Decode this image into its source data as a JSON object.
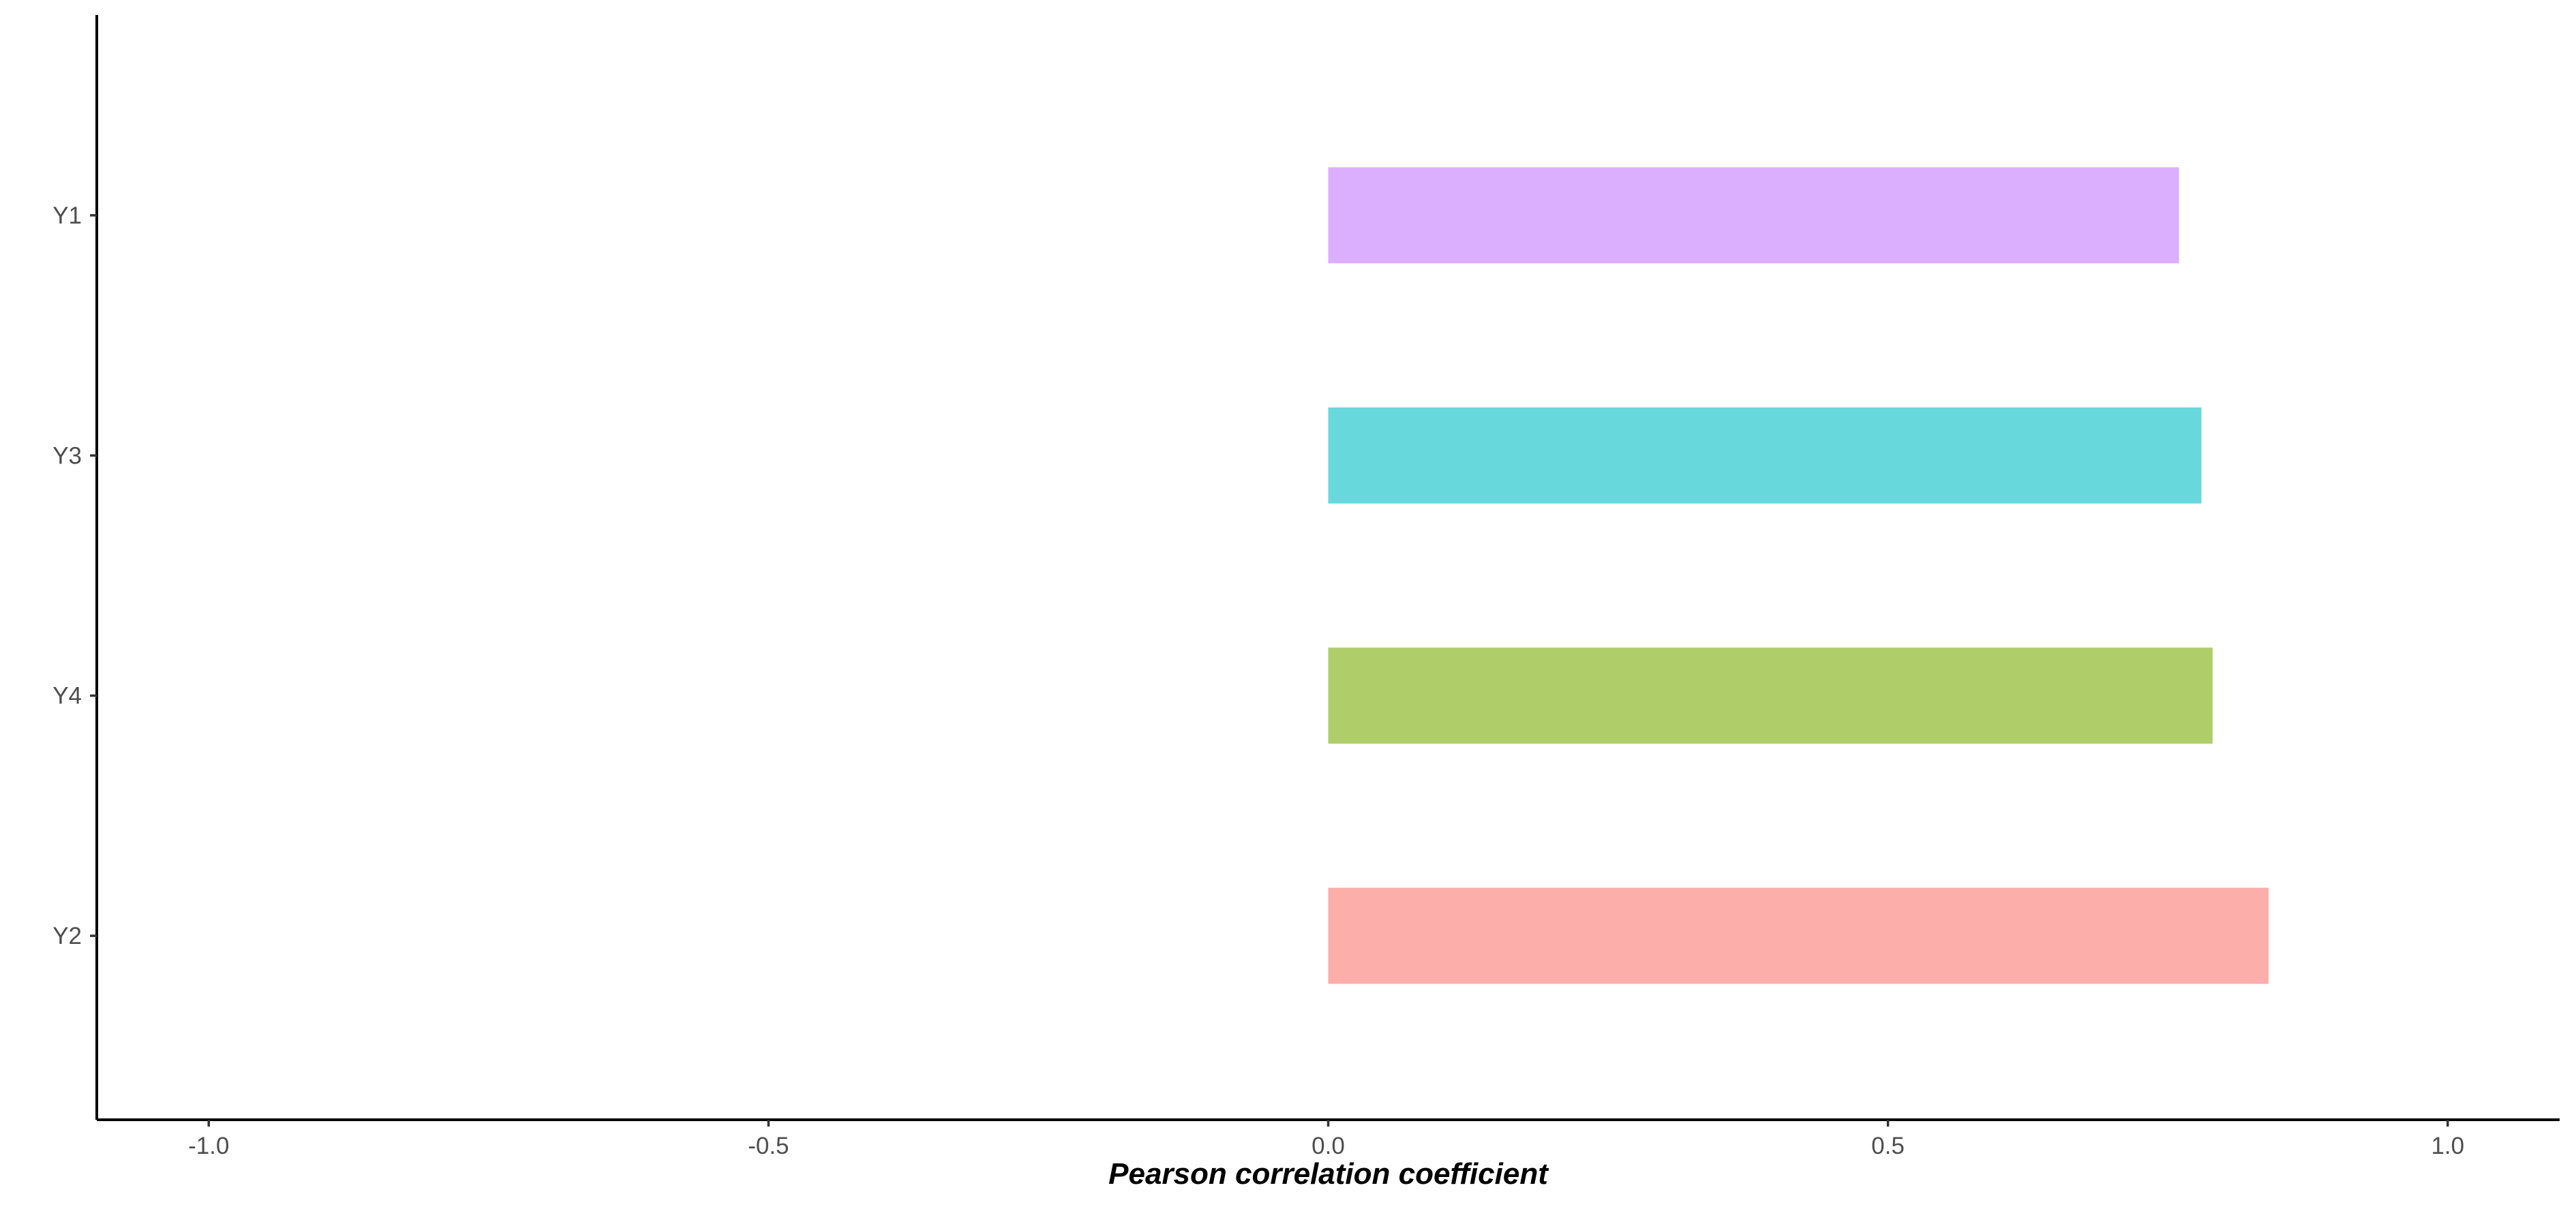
{
  "chart_data": {
    "type": "bar",
    "orientation": "horizontal",
    "categories": [
      "Y1",
      "Y3",
      "Y4",
      "Y2"
    ],
    "values": [
      0.76,
      0.78,
      0.79,
      0.84
    ],
    "colors": [
      "#dbaffe",
      "#67d9dc",
      "#afce69",
      "#fbaeaa"
    ],
    "title": "",
    "xlabel": "Pearson correlation coefficient",
    "ylabel": "",
    "xlim": [
      -1.1,
      1.1
    ],
    "xticks": [
      -1.0,
      -0.5,
      0.0,
      0.5,
      1.0
    ],
    "xtick_labels": [
      "-1.0",
      "-0.5",
      "0.0",
      "0.5",
      "1.0"
    ],
    "grid": false,
    "legend": "none"
  }
}
